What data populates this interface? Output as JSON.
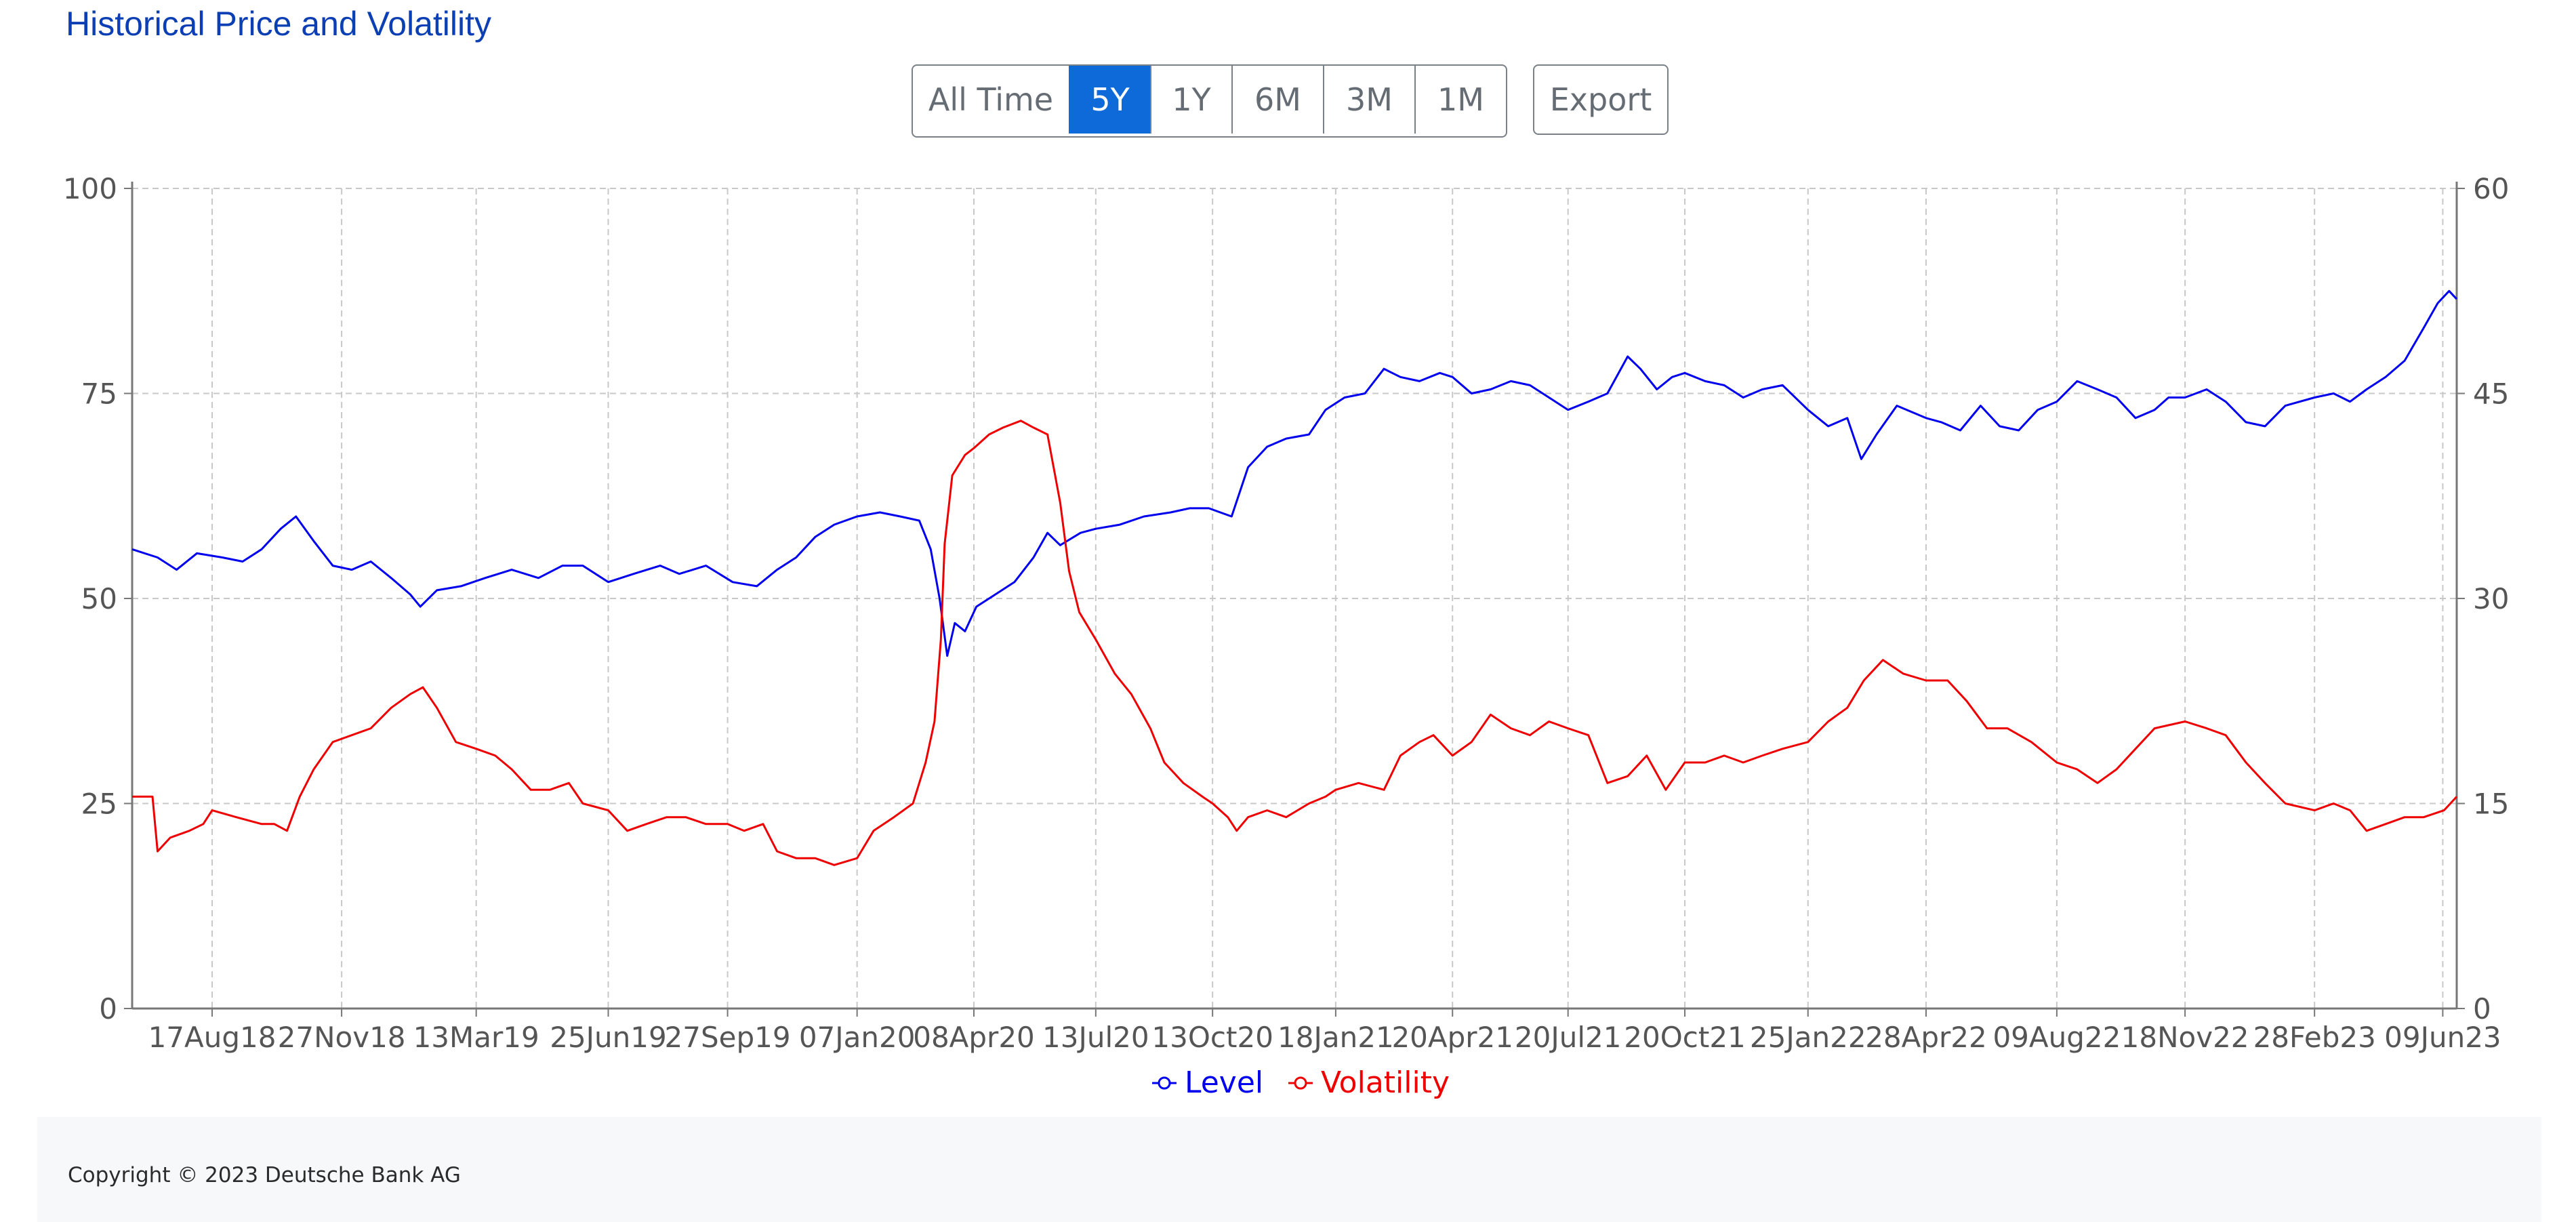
{
  "header": {
    "title": "Historical Price and Volatility"
  },
  "range_buttons": [
    {
      "label": "All Time",
      "active": false
    },
    {
      "label": "5Y",
      "active": true
    },
    {
      "label": "1Y",
      "active": false
    },
    {
      "label": "6M",
      "active": false
    },
    {
      "label": "3M",
      "active": false
    },
    {
      "label": "1M",
      "active": false
    }
  ],
  "export_label": "Export",
  "footer": {
    "copyright": "Copyright © 2023 Deutsche Bank AG"
  },
  "colors": {
    "level": "#0000ee",
    "volatility": "#ee0000",
    "accent": "#0d6ad8",
    "title": "#0b3fb3"
  },
  "chart_data": {
    "type": "line",
    "x_start": "2018-06-15",
    "x_end": "2023-06-20",
    "x_tick_labels": [
      {
        "label": "17Aug18",
        "date": "2018-08-17"
      },
      {
        "label": "27Nov18",
        "date": "2018-11-27"
      },
      {
        "label": "13Mar19",
        "date": "2019-03-13"
      },
      {
        "label": "25Jun19",
        "date": "2019-06-25"
      },
      {
        "label": "27Sep19",
        "date": "2019-09-27"
      },
      {
        "label": "07Jan20",
        "date": "2020-01-07"
      },
      {
        "label": "08Apr20",
        "date": "2020-04-08"
      },
      {
        "label": "13Jul20",
        "date": "2020-07-13"
      },
      {
        "label": "13Oct20",
        "date": "2020-10-13"
      },
      {
        "label": "18Jan21",
        "date": "2021-01-18"
      },
      {
        "label": "20Apr21",
        "date": "2021-04-20"
      },
      {
        "label": "20Jul21",
        "date": "2021-07-20"
      },
      {
        "label": "20Oct21",
        "date": "2021-10-20"
      },
      {
        "label": "25Jan22",
        "date": "2022-01-25"
      },
      {
        "label": "28Apr22",
        "date": "2022-04-28"
      },
      {
        "label": "09Aug22",
        "date": "2022-08-09"
      },
      {
        "label": "18Nov22",
        "date": "2022-11-18"
      },
      {
        "label": "28Feb23",
        "date": "2023-02-28"
      },
      {
        "label": "09Jun23",
        "date": "2023-06-09"
      }
    ],
    "y_left": {
      "min": 0,
      "max": 100,
      "ticks": [
        0,
        25,
        50,
        75,
        100
      ]
    },
    "y_right": {
      "min": 0,
      "max": 60,
      "ticks": [
        0,
        15,
        30,
        45,
        60
      ]
    },
    "grid": true,
    "legend_position": "bottom-center",
    "series": [
      {
        "name": "Level",
        "axis": "left",
        "color": "#0000ee",
        "points": [
          [
            "2018-06-15",
            56
          ],
          [
            "2018-07-05",
            55
          ],
          [
            "2018-07-20",
            53.5
          ],
          [
            "2018-08-05",
            55.5
          ],
          [
            "2018-08-25",
            55
          ],
          [
            "2018-09-10",
            54.5
          ],
          [
            "2018-09-25",
            56
          ],
          [
            "2018-10-10",
            58.5
          ],
          [
            "2018-10-22",
            60
          ],
          [
            "2018-11-05",
            57
          ],
          [
            "2018-11-20",
            54
          ],
          [
            "2018-12-05",
            53.5
          ],
          [
            "2018-12-20",
            54.5
          ],
          [
            "2019-01-05",
            52.5
          ],
          [
            "2019-01-20",
            50.5
          ],
          [
            "2019-01-28",
            49
          ],
          [
            "2019-02-10",
            51
          ],
          [
            "2019-03-01",
            51.5
          ],
          [
            "2019-03-20",
            52.5
          ],
          [
            "2019-04-10",
            53.5
          ],
          [
            "2019-05-01",
            52.5
          ],
          [
            "2019-05-20",
            54
          ],
          [
            "2019-06-05",
            54
          ],
          [
            "2019-06-25",
            52
          ],
          [
            "2019-07-15",
            53
          ],
          [
            "2019-08-05",
            54
          ],
          [
            "2019-08-20",
            53
          ],
          [
            "2019-09-10",
            54
          ],
          [
            "2019-10-01",
            52
          ],
          [
            "2019-10-20",
            51.5
          ],
          [
            "2019-11-05",
            53.5
          ],
          [
            "2019-11-20",
            55
          ],
          [
            "2019-12-05",
            57.5
          ],
          [
            "2019-12-20",
            59
          ],
          [
            "2020-01-07",
            60
          ],
          [
            "2020-01-25",
            60.5
          ],
          [
            "2020-02-10",
            60
          ],
          [
            "2020-02-25",
            59.5
          ],
          [
            "2020-03-05",
            56
          ],
          [
            "2020-03-12",
            50
          ],
          [
            "2020-03-18",
            43
          ],
          [
            "2020-03-24",
            47
          ],
          [
            "2020-04-01",
            46
          ],
          [
            "2020-04-10",
            49
          ],
          [
            "2020-04-25",
            50.5
          ],
          [
            "2020-05-10",
            52
          ],
          [
            "2020-05-25",
            55
          ],
          [
            "2020-06-05",
            58
          ],
          [
            "2020-06-15",
            56.5
          ],
          [
            "2020-07-01",
            58
          ],
          [
            "2020-07-13",
            58.5
          ],
          [
            "2020-08-01",
            59
          ],
          [
            "2020-08-20",
            60
          ],
          [
            "2020-09-10",
            60.5
          ],
          [
            "2020-09-25",
            61
          ],
          [
            "2020-10-10",
            61
          ],
          [
            "2020-10-28",
            60
          ],
          [
            "2020-11-10",
            66
          ],
          [
            "2020-11-25",
            68.5
          ],
          [
            "2020-12-10",
            69.5
          ],
          [
            "2020-12-28",
            70
          ],
          [
            "2021-01-10",
            73
          ],
          [
            "2021-01-25",
            74.5
          ],
          [
            "2021-02-10",
            75
          ],
          [
            "2021-02-25",
            78
          ],
          [
            "2021-03-10",
            77
          ],
          [
            "2021-03-25",
            76.5
          ],
          [
            "2021-04-10",
            77.5
          ],
          [
            "2021-04-20",
            77
          ],
          [
            "2021-05-05",
            75
          ],
          [
            "2021-05-20",
            75.5
          ],
          [
            "2021-06-05",
            76.5
          ],
          [
            "2021-06-20",
            76
          ],
          [
            "2021-07-05",
            74.5
          ],
          [
            "2021-07-20",
            73
          ],
          [
            "2021-08-05",
            74
          ],
          [
            "2021-08-20",
            75
          ],
          [
            "2021-09-05",
            79.5
          ],
          [
            "2021-09-15",
            78
          ],
          [
            "2021-09-28",
            75.5
          ],
          [
            "2021-10-10",
            77
          ],
          [
            "2021-10-20",
            77.5
          ],
          [
            "2021-11-05",
            76.5
          ],
          [
            "2021-11-20",
            76
          ],
          [
            "2021-12-05",
            74.5
          ],
          [
            "2021-12-20",
            75.5
          ],
          [
            "2022-01-05",
            76
          ],
          [
            "2022-01-25",
            73
          ],
          [
            "2022-02-10",
            71
          ],
          [
            "2022-02-25",
            72
          ],
          [
            "2022-03-08",
            67
          ],
          [
            "2022-03-20",
            70
          ],
          [
            "2022-04-05",
            73.5
          ],
          [
            "2022-04-28",
            72
          ],
          [
            "2022-05-10",
            71.5
          ],
          [
            "2022-05-25",
            70.5
          ],
          [
            "2022-06-10",
            73.5
          ],
          [
            "2022-06-25",
            71
          ],
          [
            "2022-07-10",
            70.5
          ],
          [
            "2022-07-25",
            73
          ],
          [
            "2022-08-09",
            74
          ],
          [
            "2022-08-25",
            76.5
          ],
          [
            "2022-09-10",
            75.5
          ],
          [
            "2022-09-25",
            74.5
          ],
          [
            "2022-10-10",
            72
          ],
          [
            "2022-10-25",
            73
          ],
          [
            "2022-11-05",
            74.5
          ],
          [
            "2022-11-18",
            74.5
          ],
          [
            "2022-12-05",
            75.5
          ],
          [
            "2022-12-20",
            74
          ],
          [
            "2023-01-05",
            71.5
          ],
          [
            "2023-01-20",
            71
          ],
          [
            "2023-02-05",
            73.5
          ],
          [
            "2023-02-28",
            74.5
          ],
          [
            "2023-03-15",
            75
          ],
          [
            "2023-03-28",
            74
          ],
          [
            "2023-04-10",
            75.5
          ],
          [
            "2023-04-25",
            77
          ],
          [
            "2023-05-10",
            79
          ],
          [
            "2023-05-25",
            83
          ],
          [
            "2023-06-05",
            86
          ],
          [
            "2023-06-14",
            87.5
          ],
          [
            "2023-06-20",
            86.5
          ]
        ]
      },
      {
        "name": "Volatility",
        "axis": "right",
        "color": "#ee0000",
        "points": [
          [
            "2018-06-15",
            15.5
          ],
          [
            "2018-06-25",
            15.5
          ],
          [
            "2018-07-01",
            15.5
          ],
          [
            "2018-07-05",
            11.5
          ],
          [
            "2018-07-15",
            12.5
          ],
          [
            "2018-07-30",
            13
          ],
          [
            "2018-08-10",
            13.5
          ],
          [
            "2018-08-17",
            14.5
          ],
          [
            "2018-09-05",
            14
          ],
          [
            "2018-09-25",
            13.5
          ],
          [
            "2018-10-05",
            13.5
          ],
          [
            "2018-10-15",
            13
          ],
          [
            "2018-10-25",
            15.5
          ],
          [
            "2018-11-05",
            17.5
          ],
          [
            "2018-11-20",
            19.5
          ],
          [
            "2018-12-05",
            20
          ],
          [
            "2018-12-20",
            20.5
          ],
          [
            "2019-01-05",
            22
          ],
          [
            "2019-01-20",
            23
          ],
          [
            "2019-01-30",
            23.5
          ],
          [
            "2019-02-10",
            22
          ],
          [
            "2019-02-25",
            19.5
          ],
          [
            "2019-03-13",
            19
          ],
          [
            "2019-03-28",
            18.5
          ],
          [
            "2019-04-10",
            17.5
          ],
          [
            "2019-04-25",
            16
          ],
          [
            "2019-05-10",
            16
          ],
          [
            "2019-05-25",
            16.5
          ],
          [
            "2019-06-05",
            15
          ],
          [
            "2019-06-25",
            14.5
          ],
          [
            "2019-07-10",
            13
          ],
          [
            "2019-07-25",
            13.5
          ],
          [
            "2019-08-10",
            14
          ],
          [
            "2019-08-25",
            14
          ],
          [
            "2019-09-10",
            13.5
          ],
          [
            "2019-09-27",
            13.5
          ],
          [
            "2019-10-10",
            13
          ],
          [
            "2019-10-25",
            13.5
          ],
          [
            "2019-11-05",
            11.5
          ],
          [
            "2019-11-20",
            11
          ],
          [
            "2019-12-05",
            11
          ],
          [
            "2019-12-20",
            10.5
          ],
          [
            "2020-01-07",
            11
          ],
          [
            "2020-01-20",
            13
          ],
          [
            "2020-02-05",
            14
          ],
          [
            "2020-02-20",
            15
          ],
          [
            "2020-03-01",
            18
          ],
          [
            "2020-03-08",
            21
          ],
          [
            "2020-03-13",
            27
          ],
          [
            "2020-03-16",
            34
          ],
          [
            "2020-03-22",
            39
          ],
          [
            "2020-04-01",
            40.5
          ],
          [
            "2020-04-08",
            41
          ],
          [
            "2020-04-20",
            42
          ],
          [
            "2020-05-01",
            42.5
          ],
          [
            "2020-05-15",
            43
          ],
          [
            "2020-05-25",
            42.5
          ],
          [
            "2020-06-05",
            42
          ],
          [
            "2020-06-15",
            37
          ],
          [
            "2020-06-22",
            32
          ],
          [
            "2020-06-30",
            29
          ],
          [
            "2020-07-13",
            27
          ],
          [
            "2020-07-28",
            24.5
          ],
          [
            "2020-08-10",
            23
          ],
          [
            "2020-08-25",
            20.5
          ],
          [
            "2020-09-05",
            18
          ],
          [
            "2020-09-20",
            16.5
          ],
          [
            "2020-10-05",
            15.5
          ],
          [
            "2020-10-13",
            15
          ],
          [
            "2020-10-25",
            14
          ],
          [
            "2020-11-01",
            13
          ],
          [
            "2020-11-10",
            14
          ],
          [
            "2020-11-25",
            14.5
          ],
          [
            "2020-12-10",
            14
          ],
          [
            "2020-12-28",
            15
          ],
          [
            "2021-01-10",
            15.5
          ],
          [
            "2021-01-18",
            16
          ],
          [
            "2021-02-05",
            16.5
          ],
          [
            "2021-02-25",
            16
          ],
          [
            "2021-03-10",
            18.5
          ],
          [
            "2021-03-25",
            19.5
          ],
          [
            "2021-04-05",
            20
          ],
          [
            "2021-04-20",
            18.5
          ],
          [
            "2021-05-05",
            19.5
          ],
          [
            "2021-05-20",
            21.5
          ],
          [
            "2021-06-05",
            20.5
          ],
          [
            "2021-06-20",
            20
          ],
          [
            "2021-07-05",
            21
          ],
          [
            "2021-07-20",
            20.5
          ],
          [
            "2021-08-05",
            20
          ],
          [
            "2021-08-20",
            16.5
          ],
          [
            "2021-09-05",
            17
          ],
          [
            "2021-09-20",
            18.5
          ],
          [
            "2021-10-05",
            16
          ],
          [
            "2021-10-20",
            18
          ],
          [
            "2021-11-05",
            18
          ],
          [
            "2021-11-20",
            18.5
          ],
          [
            "2021-12-05",
            18
          ],
          [
            "2021-12-20",
            18.5
          ],
          [
            "2022-01-05",
            19
          ],
          [
            "2022-01-25",
            19.5
          ],
          [
            "2022-02-10",
            21
          ],
          [
            "2022-02-25",
            22
          ],
          [
            "2022-03-10",
            24
          ],
          [
            "2022-03-25",
            25.5
          ],
          [
            "2022-04-10",
            24.5
          ],
          [
            "2022-04-28",
            24
          ],
          [
            "2022-05-15",
            24
          ],
          [
            "2022-05-30",
            22.5
          ],
          [
            "2022-06-15",
            20.5
          ],
          [
            "2022-07-01",
            20.5
          ],
          [
            "2022-07-20",
            19.5
          ],
          [
            "2022-08-09",
            18
          ],
          [
            "2022-08-25",
            17.5
          ],
          [
            "2022-09-10",
            16.5
          ],
          [
            "2022-09-25",
            17.5
          ],
          [
            "2022-10-10",
            19
          ],
          [
            "2022-10-25",
            20.5
          ],
          [
            "2022-11-18",
            21
          ],
          [
            "2022-12-05",
            20.5
          ],
          [
            "2022-12-20",
            20
          ],
          [
            "2023-01-05",
            18
          ],
          [
            "2023-01-20",
            16.5
          ],
          [
            "2023-02-05",
            15
          ],
          [
            "2023-02-28",
            14.5
          ],
          [
            "2023-03-15",
            15
          ],
          [
            "2023-03-28",
            14.5
          ],
          [
            "2023-04-10",
            13
          ],
          [
            "2023-04-25",
            13.5
          ],
          [
            "2023-05-10",
            14
          ],
          [
            "2023-05-25",
            14
          ],
          [
            "2023-06-10",
            14.5
          ],
          [
            "2023-06-20",
            15.5
          ]
        ]
      }
    ]
  }
}
